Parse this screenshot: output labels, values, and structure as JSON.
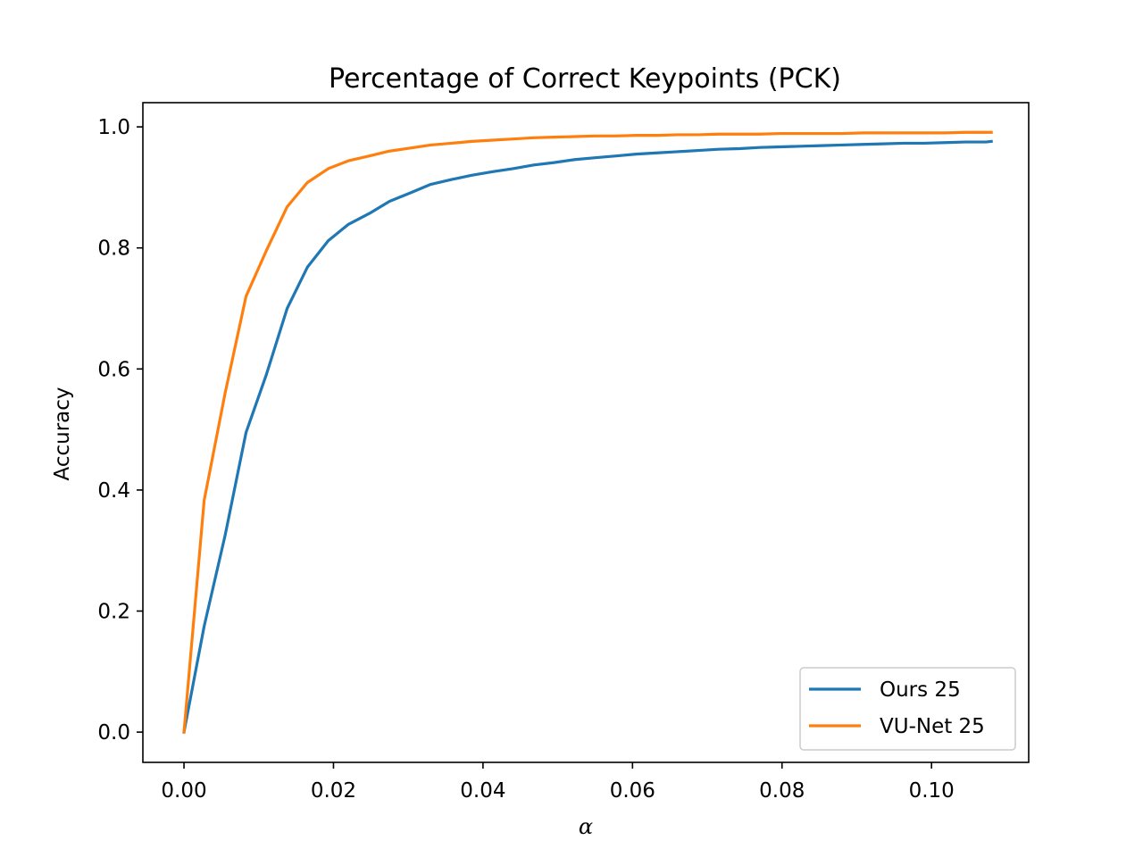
{
  "chart_data": {
    "type": "line",
    "title": "Percentage of Correct Keypoints (PCK)",
    "xlabel": "α",
    "ylabel": "Accuracy",
    "xlim": [
      -0.0055,
      0.113
    ],
    "ylim": [
      -0.05,
      1.04
    ],
    "xticks": [
      0.0,
      0.02,
      0.04,
      0.06,
      0.08,
      0.1
    ],
    "xtick_labels": [
      "0.00",
      "0.02",
      "0.04",
      "0.06",
      "0.08",
      "0.10"
    ],
    "yticks": [
      0.0,
      0.2,
      0.4,
      0.6,
      0.8,
      1.0
    ],
    "ytick_labels": [
      "0.0",
      "0.2",
      "0.4",
      "0.6",
      "0.8",
      "1.0"
    ],
    "grid": false,
    "legend_position": "lower-right",
    "series": [
      {
        "name": "Ours 25",
        "color": "#1f77b4",
        "x": [
          0.0,
          0.0027,
          0.0055,
          0.0083,
          0.011,
          0.0138,
          0.0165,
          0.0193,
          0.022,
          0.0248,
          0.0275,
          0.0303,
          0.033,
          0.0358,
          0.0385,
          0.0413,
          0.044,
          0.0468,
          0.0495,
          0.0523,
          0.055,
          0.0578,
          0.0605,
          0.0633,
          0.066,
          0.0688,
          0.0715,
          0.0743,
          0.077,
          0.0798,
          0.0825,
          0.0853,
          0.088,
          0.0908,
          0.0935,
          0.0963,
          0.099,
          0.1018,
          0.1045,
          0.1073,
          0.108
        ],
        "y": [
          0.0,
          0.175,
          0.325,
          0.495,
          0.59,
          0.7,
          0.768,
          0.812,
          0.839,
          0.857,
          0.877,
          0.891,
          0.905,
          0.913,
          0.92,
          0.926,
          0.931,
          0.937,
          0.941,
          0.946,
          0.949,
          0.952,
          0.955,
          0.957,
          0.959,
          0.961,
          0.963,
          0.964,
          0.966,
          0.967,
          0.968,
          0.969,
          0.97,
          0.971,
          0.972,
          0.973,
          0.973,
          0.974,
          0.975,
          0.975,
          0.976
        ]
      },
      {
        "name": "VU-Net 25",
        "color": "#ff7f0e",
        "x": [
          0.0,
          0.0027,
          0.0055,
          0.0083,
          0.011,
          0.0138,
          0.0165,
          0.0193,
          0.022,
          0.0248,
          0.0275,
          0.0303,
          0.033,
          0.0358,
          0.0385,
          0.0413,
          0.044,
          0.0468,
          0.0495,
          0.0523,
          0.055,
          0.0578,
          0.0605,
          0.0633,
          0.066,
          0.0688,
          0.0715,
          0.0743,
          0.077,
          0.0798,
          0.0825,
          0.0853,
          0.088,
          0.0908,
          0.0935,
          0.0963,
          0.099,
          0.1018,
          0.1045,
          0.1073,
          0.108
        ],
        "y": [
          0.0,
          0.383,
          0.56,
          0.72,
          0.795,
          0.868,
          0.908,
          0.931,
          0.944,
          0.952,
          0.96,
          0.965,
          0.97,
          0.973,
          0.976,
          0.978,
          0.98,
          0.982,
          0.983,
          0.984,
          0.985,
          0.985,
          0.986,
          0.986,
          0.987,
          0.987,
          0.988,
          0.988,
          0.988,
          0.989,
          0.989,
          0.989,
          0.989,
          0.99,
          0.99,
          0.99,
          0.99,
          0.99,
          0.991,
          0.991,
          0.991
        ]
      }
    ]
  }
}
